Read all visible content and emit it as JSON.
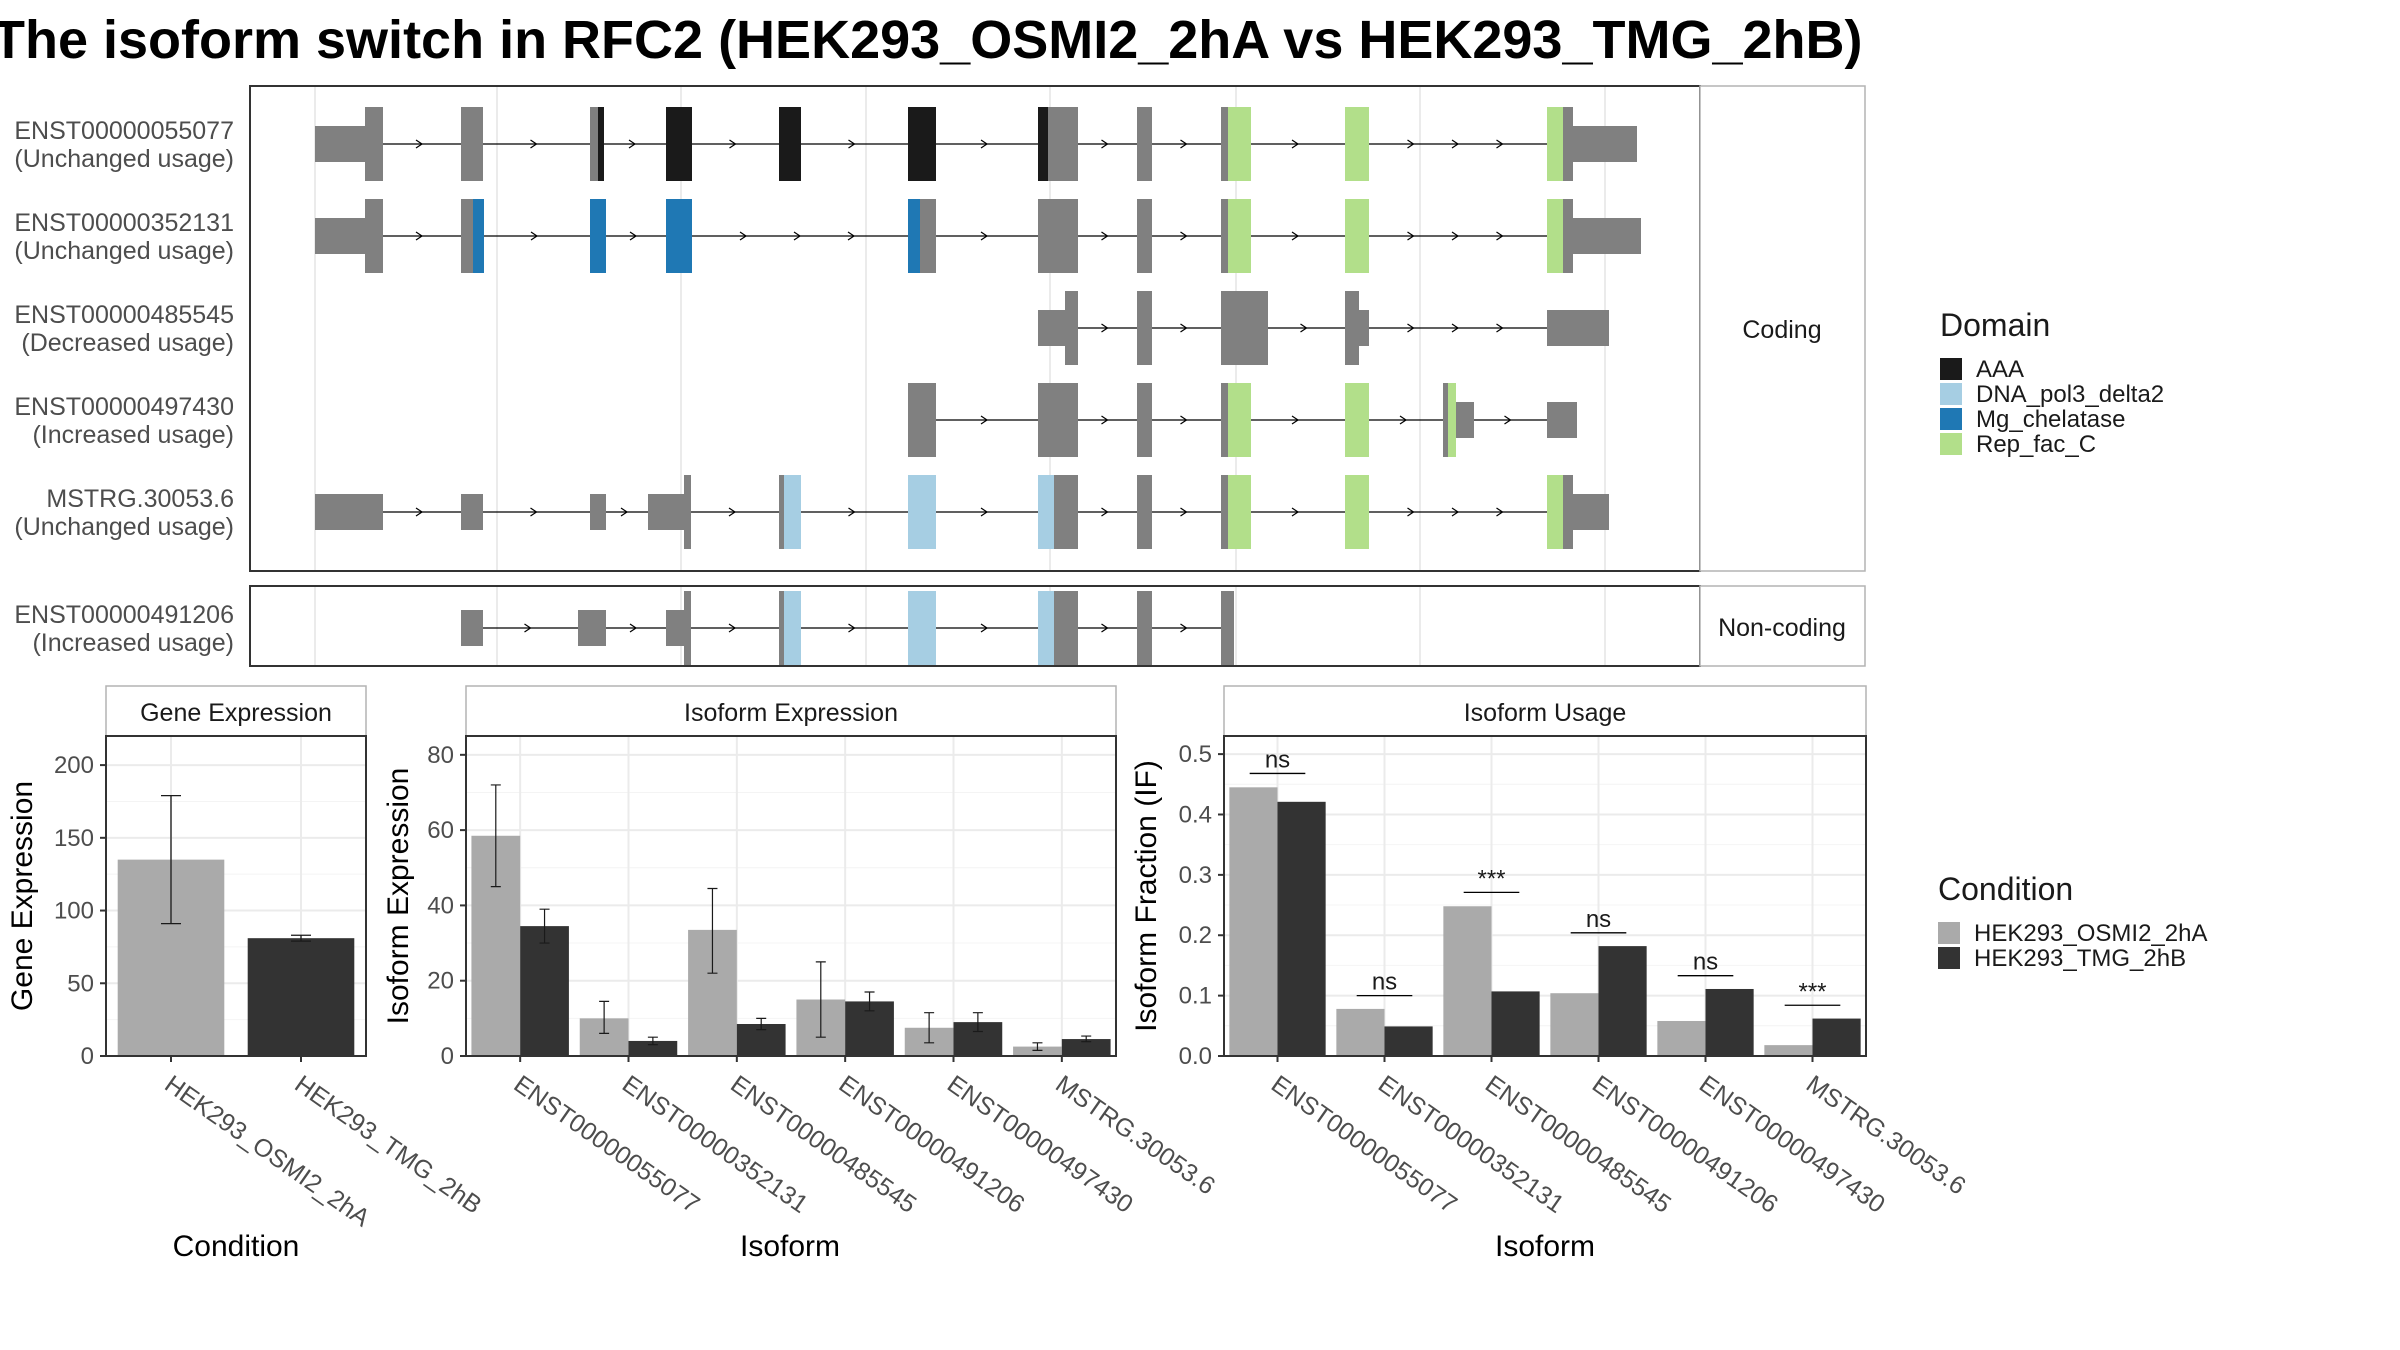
{
  "title": "The isoform switch in RFC2 (HEK293_OSMI2_2hA vs HEK293_TMG_2hB)",
  "colors": {
    "exon": "#808080",
    "AAA": "#1a1a1a",
    "DNA_pol3_delta2": "#a6cee3",
    "Mg_chelatase": "#1f78b4",
    "Rep_fac_C": "#b2df8a",
    "cond1": "#aaaaaa",
    "cond2": "#333333"
  },
  "structure": {
    "coding_strip": "Coding",
    "noncoding_strip": "Non-coding",
    "transcripts": [
      {
        "id": "ENST00000055077",
        "usage": "(Unchanged usage)",
        "group": "coding"
      },
      {
        "id": "ENST00000352131",
        "usage": "(Unchanged usage)",
        "group": "coding"
      },
      {
        "id": "ENST00000485545",
        "usage": "(Decreased usage)",
        "group": "coding"
      },
      {
        "id": "ENST00000497430",
        "usage": "(Increased usage)",
        "group": "coding"
      },
      {
        "id": "MSTRG.30053.6",
        "usage": "(Unchanged usage)",
        "group": "coding"
      },
      {
        "id": "ENST00000491206",
        "usage": "(Increased usage)",
        "group": "noncoding"
      }
    ]
  },
  "legend_domain": {
    "title": "Domain",
    "items": [
      {
        "key": "AAA",
        "label": "AAA"
      },
      {
        "key": "DNA_pol3_delta2",
        "label": "DNA_pol3_delta2"
      },
      {
        "key": "Mg_chelatase",
        "label": "Mg_chelatase"
      },
      {
        "key": "Rep_fac_C",
        "label": "Rep_fac_C"
      }
    ]
  },
  "legend_condition": {
    "title": "Condition",
    "items": [
      {
        "key": "cond1",
        "label": "HEK293_OSMI2_2hA"
      },
      {
        "key": "cond2",
        "label": "HEK293_TMG_2hB"
      }
    ]
  },
  "chart_data": [
    {
      "type": "bar",
      "title": "Gene Expression",
      "xlabel": "Condition",
      "ylabel": "Gene Expression",
      "categories": [
        "HEK293_OSMI2_2hA",
        "HEK293_TMG_2hB"
      ],
      "values": [
        135,
        81
      ],
      "error_low": [
        91,
        79
      ],
      "error_high": [
        179,
        83
      ],
      "yticks": [
        0,
        50,
        100,
        150,
        200
      ],
      "ylim": [
        0,
        220
      ]
    },
    {
      "type": "bar",
      "title": "Isoform Expression",
      "xlabel": "Isoform",
      "ylabel": "Isoform Expression",
      "categories": [
        "ENST00000055077",
        "ENST00000352131",
        "ENST00000485545",
        "ENST00000491206",
        "ENST00000497430",
        "MSTRG.30053.6"
      ],
      "yticks": [
        0,
        20,
        40,
        60,
        80
      ],
      "ylim": [
        0,
        85
      ],
      "series": [
        {
          "name": "HEK293_OSMI2_2hA",
          "values": [
            58.5,
            10,
            33.5,
            15,
            7.5,
            2.5
          ],
          "error_low": [
            45,
            6,
            22,
            5,
            3.5,
            1.5
          ],
          "error_high": [
            72,
            14.5,
            44.5,
            25,
            11.5,
            3.5
          ]
        },
        {
          "name": "HEK293_TMG_2hB",
          "values": [
            34.5,
            4,
            8.5,
            14.5,
            9,
            4.5
          ],
          "error_low": [
            30,
            3,
            7,
            12,
            6.5,
            3.8
          ],
          "error_high": [
            39,
            5,
            10,
            17,
            11.5,
            5.3
          ]
        }
      ]
    },
    {
      "type": "bar",
      "title": "Isoform Usage",
      "xlabel": "Isoform",
      "ylabel": "Isoform Fraction (IF)",
      "categories": [
        "ENST00000055077",
        "ENST00000352131",
        "ENST00000485545",
        "ENST00000491206",
        "ENST00000497430",
        "MSTRG.30053.6"
      ],
      "yticks": [
        0,
        0.1,
        0.2,
        0.3,
        0.4,
        0.5
      ],
      "ytick_labels": [
        "0.0",
        "0.1",
        "0.2",
        "0.3",
        "0.4",
        "0.5"
      ],
      "ylim": [
        0,
        0.53
      ],
      "series": [
        {
          "name": "HEK293_OSMI2_2hA",
          "values": [
            0.445,
            0.078,
            0.248,
            0.104,
            0.058,
            0.018
          ]
        },
        {
          "name": "HEK293_TMG_2hB",
          "values": [
            0.421,
            0.049,
            0.107,
            0.182,
            0.111,
            0.062
          ]
        }
      ],
      "significance": [
        {
          "label": "ns",
          "y": 0.468
        },
        {
          "label": "ns",
          "y": 0.1
        },
        {
          "label": "***",
          "y": 0.271
        },
        {
          "label": "ns",
          "y": 0.204
        },
        {
          "label": "ns",
          "y": 0.133
        },
        {
          "label": "***",
          "y": 0.084
        }
      ]
    }
  ]
}
